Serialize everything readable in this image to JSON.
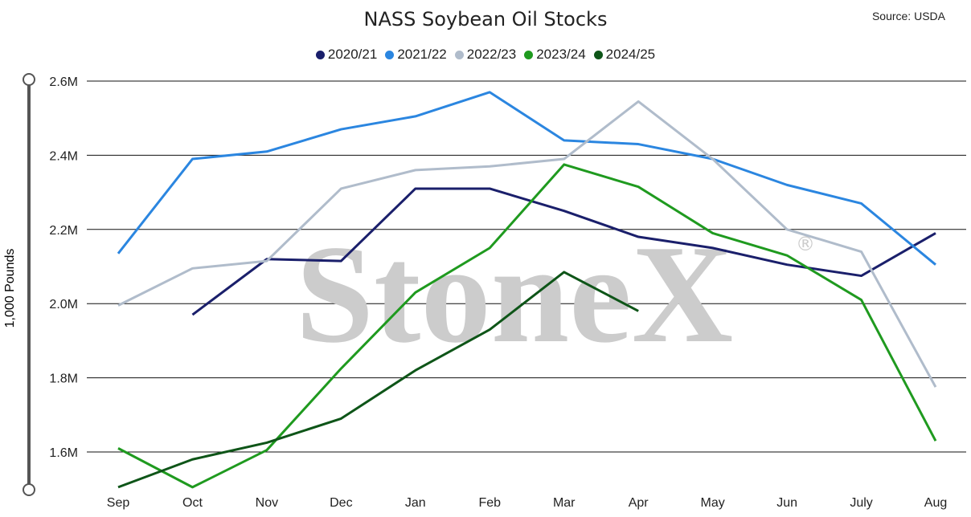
{
  "chart_data": {
    "type": "line",
    "title": "NASS Soybean Oil Stocks",
    "source": "Source: USDA",
    "ylabel": "1,000 Pounds",
    "watermark": "StoneX",
    "watermark_mark": "®",
    "ylim": [
      1500000,
      2600000
    ],
    "yticks": [
      {
        "value": 1600000,
        "label": "1.6M"
      },
      {
        "value": 1800000,
        "label": "1.8M"
      },
      {
        "value": 2000000,
        "label": "2.0M"
      },
      {
        "value": 2200000,
        "label": "2.2M"
      },
      {
        "value": 2400000,
        "label": "2.4M"
      },
      {
        "value": 2600000,
        "label": "2.6M"
      }
    ],
    "categories": [
      "Sep",
      "Oct",
      "Nov",
      "Dec",
      "Jan",
      "Feb",
      "Mar",
      "Apr",
      "May",
      "Jun",
      "July",
      "Aug"
    ],
    "grid": true,
    "legend_position": "top-center",
    "series": [
      {
        "name": "2020/21",
        "color": "#1a1f6b",
        "values": [
          null,
          1970000,
          2120000,
          2115000,
          2310000,
          2310000,
          2250000,
          2180000,
          2150000,
          2105000,
          2075000,
          2190000
        ]
      },
      {
        "name": "2021/22",
        "color": "#2b86e0",
        "values": [
          2135000,
          2390000,
          2410000,
          2470000,
          2505000,
          2570000,
          2440000,
          2430000,
          2390000,
          2320000,
          2270000,
          2105000
        ]
      },
      {
        "name": "2022/23",
        "color": "#b0bccb",
        "values": [
          1995000,
          2095000,
          2115000,
          2310000,
          2360000,
          2370000,
          2390000,
          2545000,
          2390000,
          2200000,
          2140000,
          1775000
        ]
      },
      {
        "name": "2023/24",
        "color": "#1f9a1f",
        "values": [
          1610000,
          1505000,
          1605000,
          1825000,
          2030000,
          2150000,
          2375000,
          2315000,
          2190000,
          2130000,
          2010000,
          1630000
        ]
      },
      {
        "name": "2024/25",
        "color": "#0e5518",
        "values": [
          1505000,
          1580000,
          1625000,
          1690000,
          1820000,
          1930000,
          2085000,
          1980000,
          null,
          null,
          null,
          null
        ]
      }
    ]
  }
}
